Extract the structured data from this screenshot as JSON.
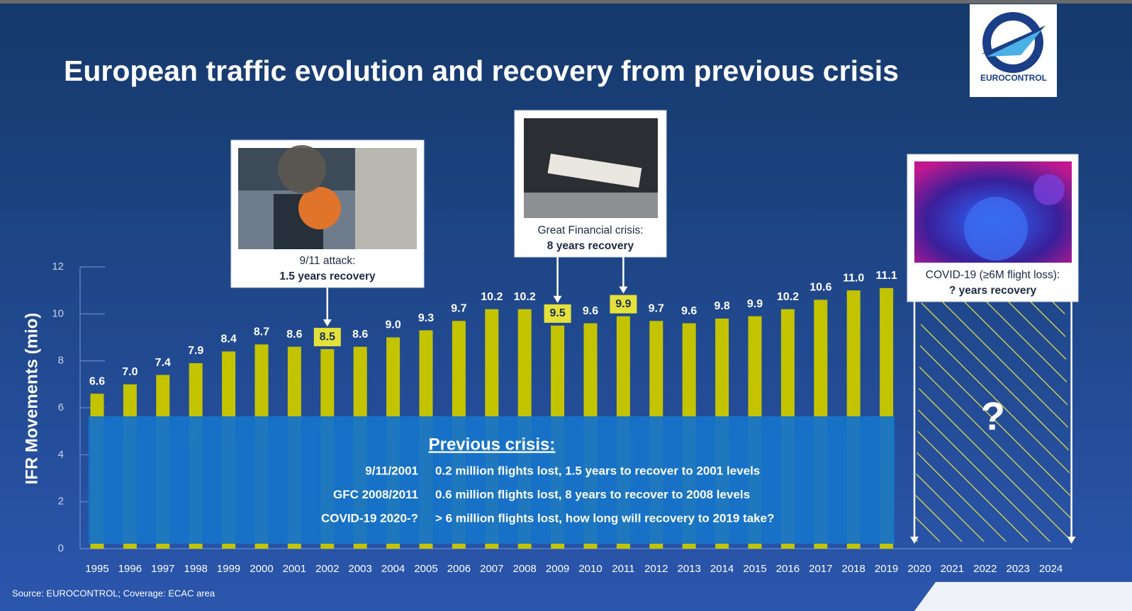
{
  "title": "European traffic evolution and recovery from previous crisis",
  "logo": "EUROCONTROL",
  "source": "Source: EUROCONTROL; Coverage: ECAC area",
  "chart_data": {
    "type": "bar",
    "y_label": "IFR Movements (mio)",
    "categories": [
      "1995",
      "1996",
      "1997",
      "1998",
      "1999",
      "2000",
      "2001",
      "2002",
      "2003",
      "2004",
      "2005",
      "2006",
      "2007",
      "2008",
      "2009",
      "2010",
      "2011",
      "2012",
      "2013",
      "2014",
      "2015",
      "2016",
      "2017",
      "2018",
      "2019",
      "2020",
      "2021",
      "2022",
      "2023",
      "2024"
    ],
    "values": [
      6.6,
      7.0,
      7.4,
      7.9,
      8.4,
      8.7,
      8.6,
      8.5,
      8.6,
      9.0,
      9.3,
      9.7,
      10.2,
      10.2,
      9.5,
      9.6,
      9.9,
      9.7,
      9.6,
      9.8,
      9.9,
      10.2,
      10.6,
      11.0,
      11.1,
      null,
      null,
      null,
      null,
      null
    ],
    "value_labels": [
      "6.6",
      "7.0",
      "7.4",
      "7.9",
      "8.4",
      "8.7",
      "8.6",
      "8.5",
      "8.6",
      "9.0",
      "9.3",
      "9.7",
      "10.2",
      "10.2",
      "9.5",
      "9.6",
      "9.9",
      "9.7",
      "9.6",
      "9.8",
      "9.9",
      "10.2",
      "10.6",
      "11.0",
      "11.1",
      null,
      null,
      null,
      null,
      null
    ],
    "color": "#c3c300",
    "ylim": [
      0,
      12
    ],
    "yticks": [
      0,
      2,
      4,
      6,
      8,
      10,
      12
    ],
    "annotations": [
      {
        "text": "9/11 attack:",
        "detail": "1.5 years recovery",
        "targets": [
          "2002"
        ]
      },
      {
        "text": "Great Financial crisis:",
        "detail": "8 years recovery",
        "targets": [
          "2009",
          "2011"
        ]
      },
      {
        "text": "COVID-19 (≥6M flight loss):",
        "detail": "? years recovery",
        "targets": [
          "2020",
          "2024"
        ]
      }
    ],
    "unknown_label": "?",
    "crisis_table": {
      "title": "Previous crisis:",
      "rows": [
        [
          "9/11/2001",
          "0.2 million flights lost, 1.5 years to recover to 2001 levels"
        ],
        [
          "GFC 2008/2011",
          "0.6 million flights lost, 8 years to recover to 2008 levels"
        ],
        [
          "COVID-19 2020-?",
          "> 6 million flights lost, how long will recovery to 2019 take?"
        ]
      ]
    }
  }
}
